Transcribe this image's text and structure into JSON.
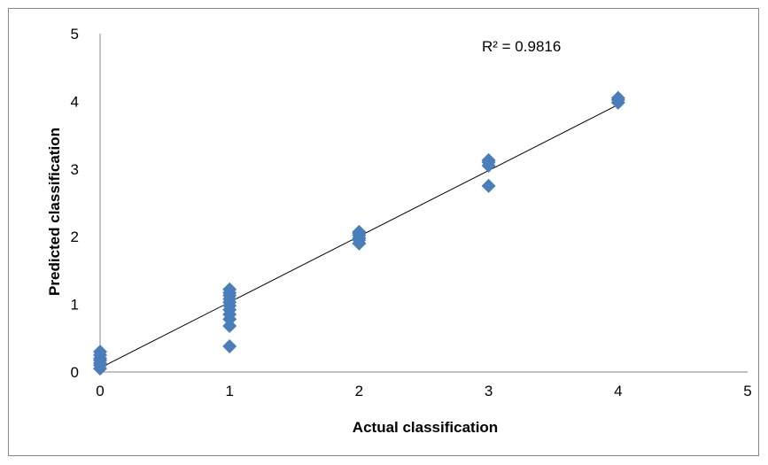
{
  "chart_data": {
    "type": "scatter",
    "title": "",
    "xlabel": "Actual classification",
    "ylabel": "Predicted classification",
    "xlim": [
      0,
      5
    ],
    "ylim": [
      0,
      5
    ],
    "xticks": [
      "0",
      "1",
      "2",
      "3",
      "4",
      "5"
    ],
    "yticks": [
      "0",
      "1",
      "2",
      "3",
      "4",
      "5"
    ],
    "grid": false,
    "legend": "none",
    "marker": "diamond",
    "marker_color": "#4a7ebb",
    "trendline_color": "#000000",
    "series": [
      {
        "x": [
          0,
          0,
          0,
          0,
          0,
          0,
          0,
          1,
          1,
          1,
          1,
          1,
          1,
          1,
          1,
          1,
          1,
          1,
          2,
          2,
          2,
          2,
          2,
          2,
          3,
          3,
          3,
          3,
          4,
          4,
          4
        ],
        "y": [
          0.05,
          0.1,
          0.13,
          0.17,
          0.2,
          0.25,
          0.3,
          0.38,
          0.68,
          0.78,
          0.85,
          0.92,
          0.98,
          1.03,
          1.08,
          1.13,
          1.17,
          1.22,
          1.9,
          1.95,
          1.98,
          2.02,
          2.05,
          2.07,
          2.75,
          3.05,
          3.1,
          3.13,
          3.98,
          4.02,
          4.05
        ]
      }
    ],
    "trendline": {
      "start": [
        0,
        0.06
      ],
      "end": [
        4,
        3.95
      ],
      "r2_text": "R² = 0.9816"
    }
  }
}
